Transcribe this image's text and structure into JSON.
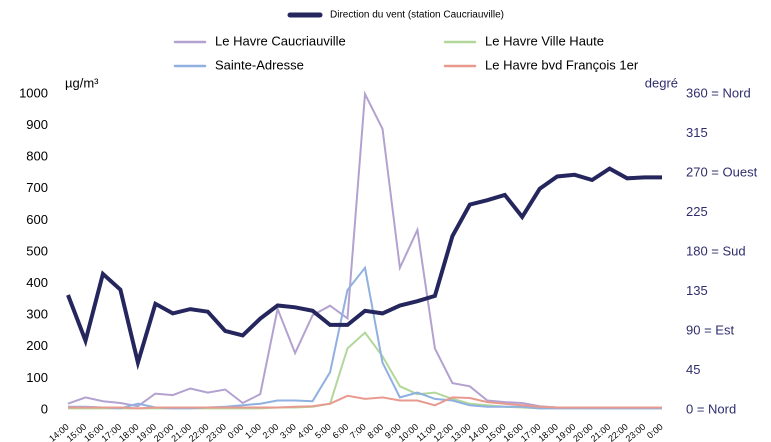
{
  "chart_data": {
    "type": "line",
    "y_label": "µg/m³",
    "y2_label": "degré",
    "categories": [
      "14:00",
      "15:00",
      "16:00",
      "17:00",
      "18:00",
      "19:00",
      "20:00",
      "21:00",
      "22:00",
      "23:00",
      "0:00",
      "1:00",
      "2:00",
      "3:00",
      "4:00",
      "5:00",
      "6:00",
      "7:00",
      "8:00",
      "9:00",
      "10:00",
      "11:00",
      "12:00",
      "13:00",
      "14:00",
      "15:00",
      "16:00",
      "17:00",
      "18:00",
      "19:00",
      "20:00",
      "21:00",
      "22:00",
      "23:00",
      "0:00"
    ],
    "series": [
      {
        "name": "Direction du vent (station Caucriauville)",
        "color": "#26265e",
        "axis": "y2",
        "values": [
          131,
          79,
          155,
          137,
          54,
          121,
          110,
          115,
          112,
          90,
          85,
          104,
          119,
          117,
          113,
          97,
          97,
          113,
          110,
          119,
          124,
          130,
          198,
          234,
          239,
          245,
          220,
          252,
          266,
          268,
          262,
          275,
          264,
          265,
          265
        ]
      },
      {
        "name": "Le Havre Caucriauville",
        "color": "#b3a2d0",
        "values": [
          20,
          40,
          28,
          22,
          12,
          52,
          47,
          68,
          55,
          65,
          22,
          50,
          320,
          180,
          300,
          330,
          290,
          1000,
          890,
          450,
          570,
          195,
          85,
          75,
          30,
          25,
          22,
          12,
          8,
          8,
          6,
          6,
          6,
          5,
          5
        ]
      },
      {
        "name": "Le Havre Ville Haute",
        "color": "#b2d79a",
        "values": [
          5,
          5,
          5,
          5,
          5,
          5,
          5,
          5,
          5,
          5,
          5,
          5,
          8,
          8,
          10,
          20,
          195,
          245,
          170,
          75,
          50,
          55,
          35,
          20,
          15,
          10,
          8,
          5,
          5,
          5,
          5,
          5,
          5,
          5,
          5
        ]
      },
      {
        "name": "Sainte-Adresse",
        "color": "#8fb0e0",
        "values": [
          10,
          10,
          8,
          5,
          20,
          8,
          5,
          5,
          8,
          10,
          15,
          20,
          30,
          30,
          28,
          120,
          380,
          450,
          150,
          40,
          55,
          35,
          30,
          15,
          10,
          10,
          10,
          5,
          5,
          5,
          5,
          5,
          5,
          5,
          5
        ]
      },
      {
        "name": "Le Havre bvd François 1er",
        "color": "#e89a8f",
        "values": [
          8,
          8,
          8,
          8,
          5,
          8,
          8,
          8,
          8,
          8,
          8,
          8,
          8,
          10,
          12,
          20,
          45,
          35,
          40,
          30,
          30,
          15,
          40,
          38,
          25,
          20,
          15,
          10,
          8,
          8,
          8,
          8,
          8,
          8,
          8
        ]
      }
    ],
    "ylim": [
      0,
      1000
    ],
    "yticks": [
      0,
      100,
      200,
      300,
      400,
      500,
      600,
      700,
      800,
      900,
      1000
    ],
    "y2lim": [
      0,
      360
    ],
    "y2ticks": [
      {
        "value": 0,
        "label": "0   = Nord"
      },
      45,
      {
        "value": 90,
        "label": "90   = Est"
      },
      135,
      {
        "value": 180,
        "label": "180 = Sud"
      },
      225,
      {
        "value": 270,
        "label": "270 = Ouest"
      },
      315,
      {
        "value": 360,
        "label": "360 = Nord"
      }
    ]
  }
}
